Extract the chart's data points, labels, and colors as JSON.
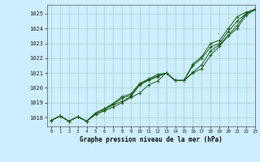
{
  "title": "Graphe pression niveau de la mer (hPa)",
  "bg_color": "#cceeff",
  "grid_color": "#aacccc",
  "line_color": "#1a5c1a",
  "xlim": [
    -0.5,
    23
  ],
  "ylim": [
    1017.4,
    1025.6
  ],
  "xticks": [
    0,
    1,
    2,
    3,
    4,
    5,
    6,
    7,
    8,
    9,
    10,
    11,
    12,
    13,
    14,
    15,
    16,
    17,
    18,
    19,
    20,
    21,
    22,
    23
  ],
  "yticks": [
    1018,
    1019,
    1020,
    1021,
    1022,
    1023,
    1024,
    1025
  ],
  "series": [
    [
      1017.8,
      1018.1,
      1017.75,
      1018.05,
      1017.75,
      1018.2,
      1018.45,
      1018.7,
      1019.0,
      1019.35,
      1019.65,
      1020.2,
      1020.45,
      1021.0,
      1020.5,
      1020.5,
      1021.0,
      1021.3,
      1022.2,
      1022.8,
      1023.5,
      1024.0,
      1024.9,
      1025.25
    ],
    [
      1017.8,
      1018.1,
      1017.75,
      1018.05,
      1017.75,
      1018.2,
      1018.5,
      1018.85,
      1019.1,
      1019.4,
      1020.2,
      1020.5,
      1020.75,
      1021.0,
      1020.5,
      1020.5,
      1021.05,
      1021.55,
      1022.5,
      1022.9,
      1023.55,
      1024.2,
      1025.0,
      1025.3
    ],
    [
      1017.8,
      1018.1,
      1017.75,
      1018.05,
      1017.75,
      1018.3,
      1018.6,
      1018.9,
      1019.3,
      1019.5,
      1020.25,
      1020.55,
      1020.8,
      1021.0,
      1020.5,
      1020.5,
      1021.5,
      1022.0,
      1022.75,
      1023.0,
      1023.8,
      1024.5,
      1025.0,
      1025.3
    ],
    [
      1017.8,
      1018.1,
      1017.75,
      1018.05,
      1017.75,
      1018.3,
      1018.6,
      1018.95,
      1019.4,
      1019.6,
      1020.3,
      1020.6,
      1020.9,
      1021.0,
      1020.5,
      1020.5,
      1021.6,
      1022.1,
      1023.0,
      1023.2,
      1024.0,
      1024.8,
      1025.1,
      1025.3
    ]
  ]
}
